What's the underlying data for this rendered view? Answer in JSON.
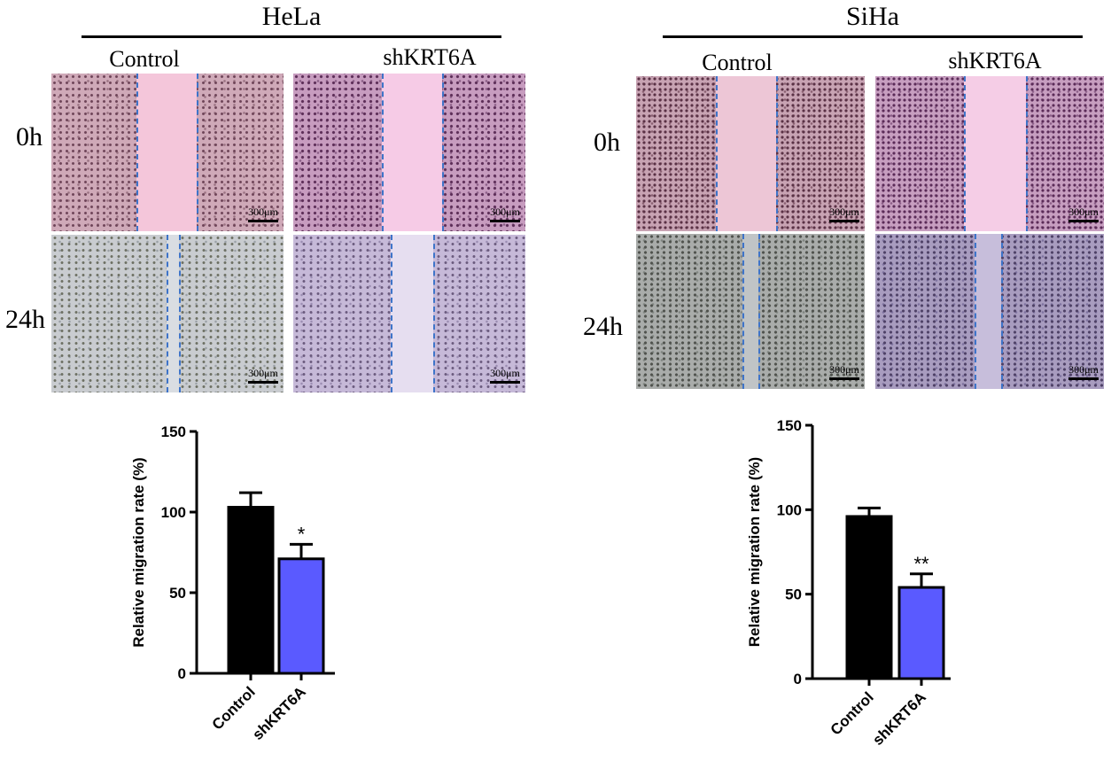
{
  "hela": {
    "title": "HeLa",
    "col_labels": [
      "Control",
      "shKRT6A"
    ],
    "row_labels": [
      "0h",
      "24h"
    ],
    "scale_label": "300μm"
  },
  "siha": {
    "title": "SiHa",
    "col_labels": [
      "Control",
      "shKRT6A"
    ],
    "row_labels": [
      "0h",
      "24h"
    ],
    "scale_label": "300μm"
  },
  "colors": {
    "control_bar": "#000000",
    "shkrt6a_bar": "#5a5aff",
    "gap_line": "#3e74c9"
  },
  "chart_data": [
    {
      "type": "bar",
      "panel": "HeLa",
      "categories": [
        "Control",
        "shKRT6A"
      ],
      "values": [
        103,
        71
      ],
      "errors": [
        9,
        9
      ],
      "significance": [
        "",
        "*"
      ],
      "ylabel": "Relative migration rate (%)",
      "ylim": [
        0,
        150
      ],
      "yticks": [
        0,
        50,
        100,
        150
      ]
    },
    {
      "type": "bar",
      "panel": "SiHa",
      "categories": [
        "Control",
        "shKRT6A"
      ],
      "values": [
        96,
        54
      ],
      "errors": [
        5,
        8
      ],
      "significance": [
        "",
        "**"
      ],
      "ylabel": "Relative migration rate (%)",
      "ylim": [
        0,
        150
      ],
      "yticks": [
        0,
        50,
        100,
        150
      ]
    }
  ]
}
